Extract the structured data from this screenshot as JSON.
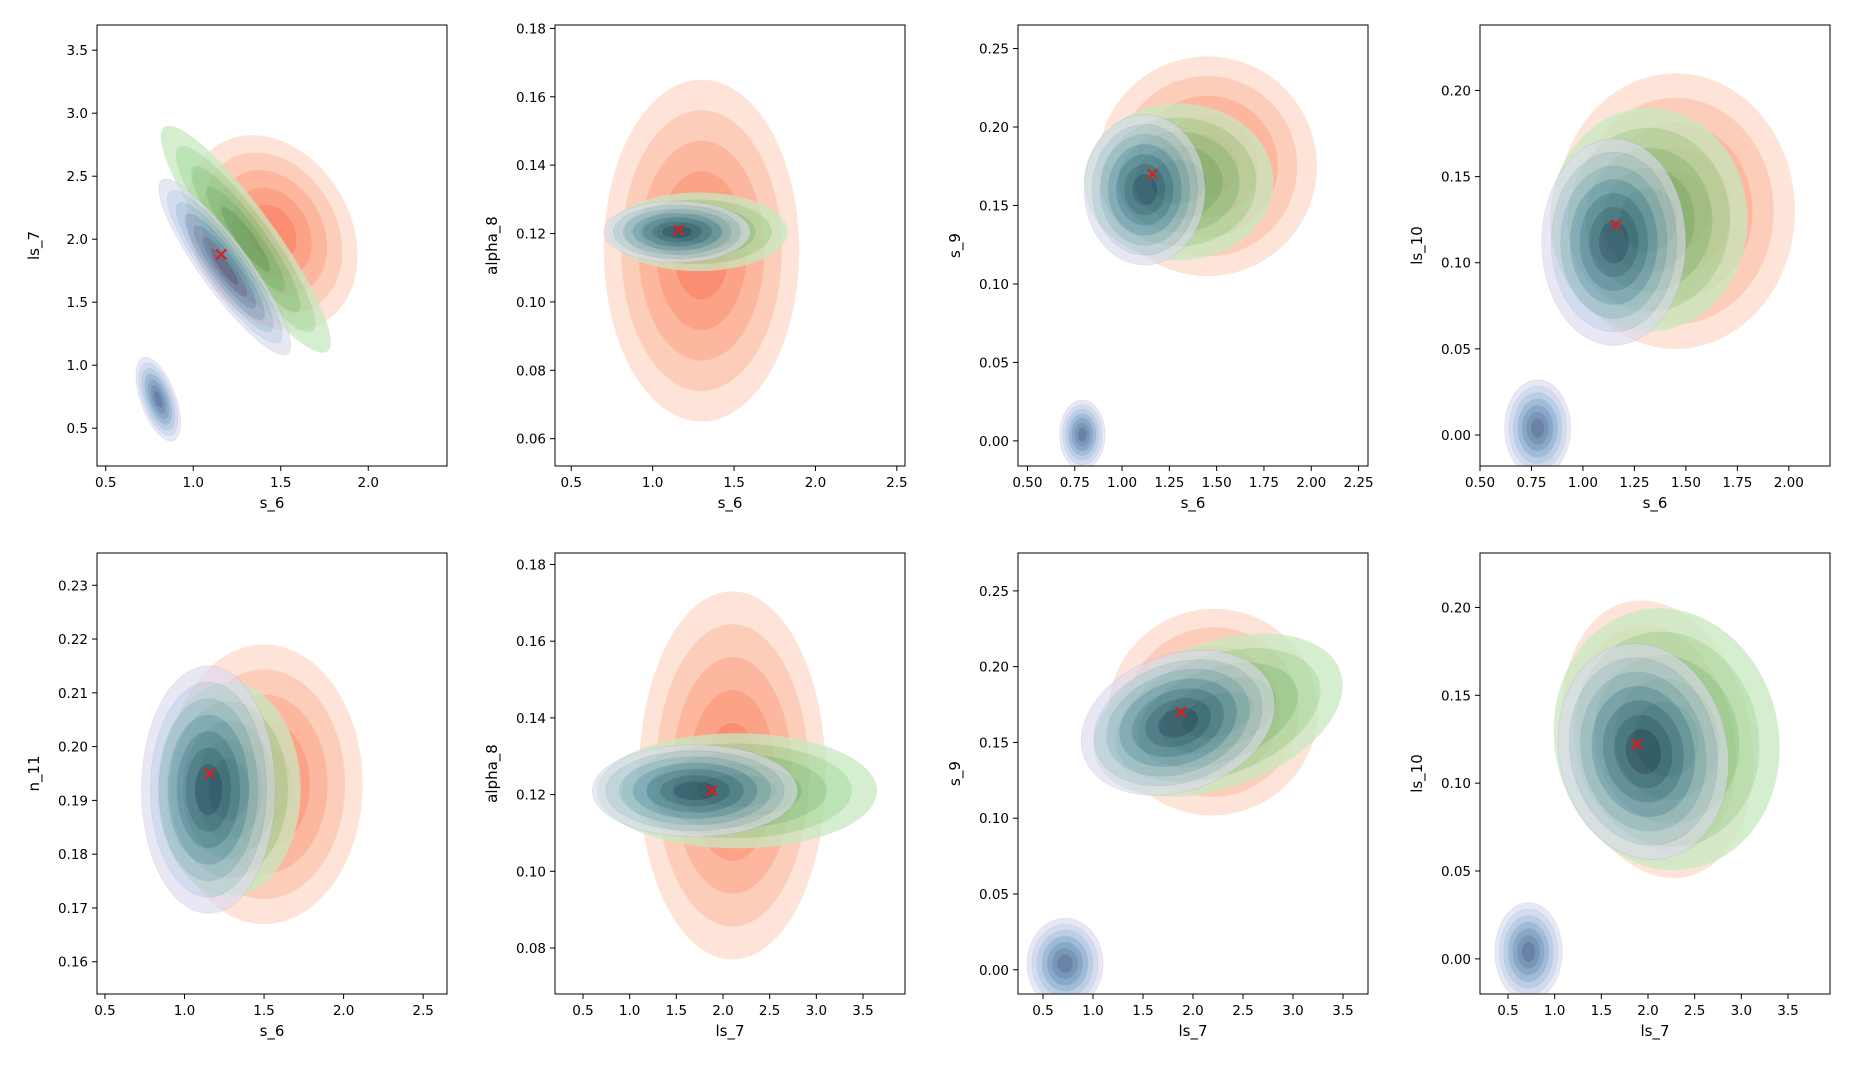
{
  "figure": {
    "layout": "2 rows x 4 columns of bivariate KDE contour panels",
    "background": "#ffffff"
  },
  "colors": {
    "red_series": "#fc9272",
    "green_series": "#74c476",
    "blue_series_light": "#bcbddc",
    "blue_series_dark": "#08306b",
    "true_value_marker": "#e41a1c"
  },
  "chart_data": [
    {
      "type": "contour",
      "xlabel": "s_6",
      "ylabel": "ls_7",
      "xlim": [
        0.45,
        2.45
      ],
      "ylim": [
        0.2,
        3.7
      ],
      "xticks": [
        "0.5",
        "1.0",
        "1.5",
        "2.0"
      ],
      "yticks": [
        "0.5",
        "1.0",
        "1.5",
        "2.0",
        "2.5",
        "3.0",
        "3.5"
      ],
      "marker": {
        "x": 1.16,
        "y": 1.88
      },
      "blue_secondary_mode": {
        "x": 0.8,
        "y": 0.73
      }
    },
    {
      "type": "contour",
      "xlabel": "s_6",
      "ylabel": "alpha_8",
      "xlim": [
        0.4,
        2.55
      ],
      "ylim": [
        0.052,
        0.181
      ],
      "xticks": [
        "0.5",
        "1.0",
        "1.5",
        "2.0",
        "2.5"
      ],
      "yticks": [
        "0.06",
        "0.08",
        "0.10",
        "0.12",
        "0.14",
        "0.16",
        "0.18"
      ],
      "marker": {
        "x": 1.16,
        "y": 0.121
      }
    },
    {
      "type": "contour",
      "xlabel": "s_6",
      "ylabel": "s_9",
      "xlim": [
        0.45,
        2.3
      ],
      "ylim": [
        -0.016,
        0.265
      ],
      "xticks": [
        "0.50",
        "0.75",
        "1.00",
        "1.25",
        "1.50",
        "1.75",
        "2.00",
        "2.25"
      ],
      "yticks": [
        "0.00",
        "0.05",
        "0.10",
        "0.15",
        "0.20",
        "0.25"
      ],
      "marker": {
        "x": 1.16,
        "y": 0.17
      },
      "blue_secondary_mode": {
        "x": 0.79,
        "y": 0.004
      }
    },
    {
      "type": "contour",
      "xlabel": "s_6",
      "ylabel": "ls_10",
      "xlim": [
        0.5,
        2.2
      ],
      "ylim": [
        -0.018,
        0.238
      ],
      "xticks": [
        "0.50",
        "0.75",
        "1.00",
        "1.25",
        "1.50",
        "1.75",
        "2.00"
      ],
      "yticks": [
        "0.00",
        "0.05",
        "0.10",
        "0.15",
        "0.20"
      ],
      "marker": {
        "x": 1.16,
        "y": 0.122
      },
      "blue_secondary_mode": {
        "x": 0.78,
        "y": 0.004
      }
    },
    {
      "type": "contour",
      "xlabel": "s_6",
      "ylabel": "n_11",
      "xlim": [
        0.45,
        2.65
      ],
      "ylim": [
        0.154,
        0.236
      ],
      "xticks": [
        "0.5",
        "1.0",
        "1.5",
        "2.0",
        "2.5"
      ],
      "yticks": [
        "0.16",
        "0.17",
        "0.18",
        "0.19",
        "0.20",
        "0.21",
        "0.22",
        "0.23"
      ],
      "marker": {
        "x": 1.16,
        "y": 0.195
      }
    },
    {
      "type": "contour",
      "xlabel": "ls_7",
      "ylabel": "alpha_8",
      "xlim": [
        0.2,
        3.95
      ],
      "ylim": [
        0.068,
        0.183
      ],
      "xticks": [
        "0.5",
        "1.0",
        "1.5",
        "2.0",
        "2.5",
        "3.0",
        "3.5"
      ],
      "yticks": [
        "0.08",
        "0.10",
        "0.12",
        "0.14",
        "0.16",
        "0.18"
      ],
      "marker": {
        "x": 1.88,
        "y": 0.121
      }
    },
    {
      "type": "contour",
      "xlabel": "ls_7",
      "ylabel": "s_9",
      "xlim": [
        0.25,
        3.75
      ],
      "ylim": [
        -0.016,
        0.275
      ],
      "xticks": [
        "0.5",
        "1.0",
        "1.5",
        "2.0",
        "2.5",
        "3.0",
        "3.5"
      ],
      "yticks": [
        "0.00",
        "0.05",
        "0.10",
        "0.15",
        "0.20",
        "0.25"
      ],
      "marker": {
        "x": 1.88,
        "y": 0.17
      },
      "blue_secondary_mode": {
        "x": 0.72,
        "y": 0.004
      }
    },
    {
      "type": "contour",
      "xlabel": "ls_7",
      "ylabel": "ls_10",
      "xlim": [
        0.2,
        3.95
      ],
      "ylim": [
        -0.02,
        0.231
      ],
      "xticks": [
        "0.5",
        "1.0",
        "1.5",
        "2.0",
        "2.5",
        "3.0",
        "3.5"
      ],
      "yticks": [
        "0.00",
        "0.05",
        "0.10",
        "0.15",
        "0.20"
      ],
      "marker": {
        "x": 1.88,
        "y": 0.122
      },
      "blue_secondary_mode": {
        "x": 0.72,
        "y": 0.004
      }
    }
  ]
}
